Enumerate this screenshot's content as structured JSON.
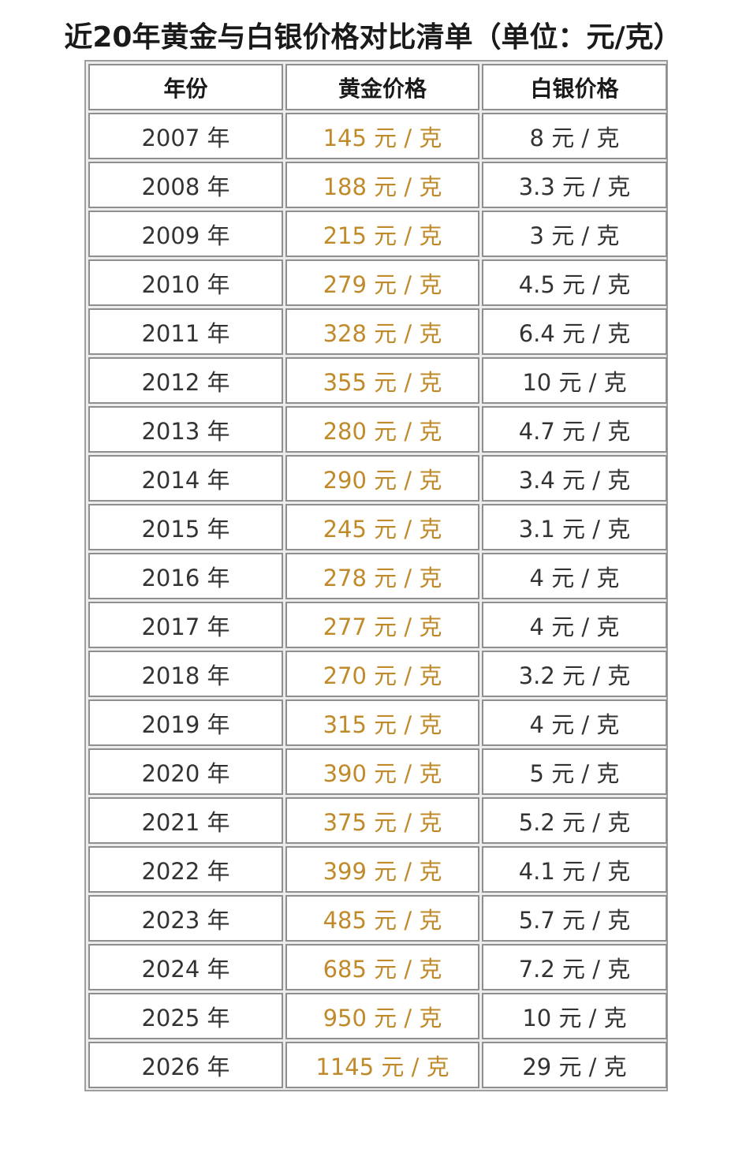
{
  "title": "近20年黄金与白银价格对比清单（单位：元/克）",
  "headers": [
    "年份",
    "黄金价格",
    "白银价格"
  ],
  "colors": {
    "gold_text": "#c08a2a",
    "text": "#333333",
    "grid_line": "#8f8f8f"
  },
  "rows": [
    {
      "year": "2007 年",
      "gold": "145 元 / 克",
      "silver": "8 元 / 克"
    },
    {
      "year": "2008 年",
      "gold": "188 元 / 克",
      "silver": "3.3 元 / 克"
    },
    {
      "year": "2009 年",
      "gold": "215 元 / 克",
      "silver": "3 元 / 克"
    },
    {
      "year": "2010 年",
      "gold": "279 元 / 克",
      "silver": "4.5 元 / 克"
    },
    {
      "year": "2011 年",
      "gold": "328 元 / 克",
      "silver": "6.4 元 / 克"
    },
    {
      "year": "2012 年",
      "gold": "355 元 / 克",
      "silver": "10 元 / 克"
    },
    {
      "year": "2013 年",
      "gold": "280 元 / 克",
      "silver": "4.7 元 / 克"
    },
    {
      "year": "2014 年",
      "gold": "290 元 / 克",
      "silver": "3.4 元 / 克"
    },
    {
      "year": "2015 年",
      "gold": "245 元 / 克",
      "silver": "3.1 元 / 克"
    },
    {
      "year": "2016 年",
      "gold": "278 元 / 克",
      "silver": "4 元 / 克"
    },
    {
      "year": "2017 年",
      "gold": "277 元 / 克",
      "silver": "4 元 / 克"
    },
    {
      "year": "2018 年",
      "gold": "270 元 / 克",
      "silver": "3.2 元 / 克"
    },
    {
      "year": "2019 年",
      "gold": "315 元 / 克",
      "silver": "4 元 / 克"
    },
    {
      "year": "2020 年",
      "gold": "390 元 / 克",
      "silver": "5 元 / 克"
    },
    {
      "year": "2021 年",
      "gold": "375 元 / 克",
      "silver": "5.2 元 / 克"
    },
    {
      "year": "2022 年",
      "gold": "399 元 / 克",
      "silver": "4.1 元 / 克"
    },
    {
      "year": "2023 年",
      "gold": "485 元 / 克",
      "silver": "5.7 元 / 克"
    },
    {
      "year": "2024 年",
      "gold": "685 元 / 克",
      "silver": "7.2 元 / 克"
    },
    {
      "year": "2025 年",
      "gold": "950 元 / 克",
      "silver": "10 元 / 克"
    },
    {
      "year": "2026 年",
      "gold": "1145 元 / 克",
      "silver": "29 元 / 克"
    }
  ]
}
